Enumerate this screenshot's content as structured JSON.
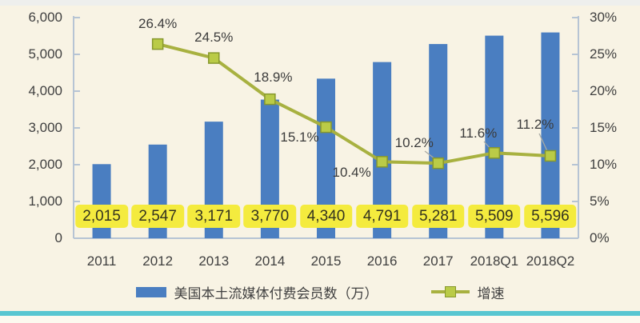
{
  "colors": {
    "background": "#f8f3e4",
    "top_strip": "#eeefed",
    "bottom_line": "#58c6d1",
    "bottom_strip": "#fcf9ef",
    "bar": "#4a7ec1",
    "line": "#a8b140",
    "marker_fill": "#bacb47",
    "marker_stroke": "#87982d",
    "axis": "#b6c4d4",
    "leader": "#a9aaa4",
    "value_label_bg": "#f4eb3e",
    "text": "#3f3f3f"
  },
  "chart_data": {
    "type": "combo-bar-line",
    "categories": [
      "2011",
      "2012",
      "2013",
      "2014",
      "2015",
      "2016",
      "2017",
      "2018Q1",
      "2018Q2"
    ],
    "series": [
      {
        "name": "美国本土流媒体付费会员数（万）",
        "type": "bar",
        "values": [
          2015,
          2547,
          3171,
          3770,
          4340,
          4791,
          5281,
          5509,
          5596
        ],
        "value_labels": [
          "2,015",
          "2,547",
          "3,171",
          "3,770",
          "4,340",
          "4,791",
          "5,281",
          "5,509",
          "5,596"
        ]
      },
      {
        "name": "增速",
        "type": "line",
        "values": [
          null,
          26.4,
          24.5,
          18.9,
          15.1,
          10.4,
          10.2,
          11.6,
          11.2
        ],
        "point_labels": [
          "",
          "26.4%",
          "24.5%",
          "18.9%",
          "15.1%",
          "10.4%",
          "10.2%",
          "11.6%",
          "11.2%"
        ]
      }
    ],
    "left_axis": {
      "min": 0,
      "max": 6000,
      "tick_labels": [
        "6,000",
        "5,000",
        "4,000",
        "3,000",
        "2,000",
        "1,000",
        "0"
      ]
    },
    "right_axis": {
      "min": 0,
      "max": 30,
      "tick_labels": [
        "30%",
        "25%",
        "20%",
        "15%",
        "10%",
        "5%",
        "0%"
      ]
    },
    "grid": false,
    "legend_position": "bottom",
    "legend": [
      {
        "label": "美国本土流媒体付费会员数（万）",
        "swatch": "bar"
      },
      {
        "label": "增速",
        "swatch": "line"
      }
    ]
  }
}
